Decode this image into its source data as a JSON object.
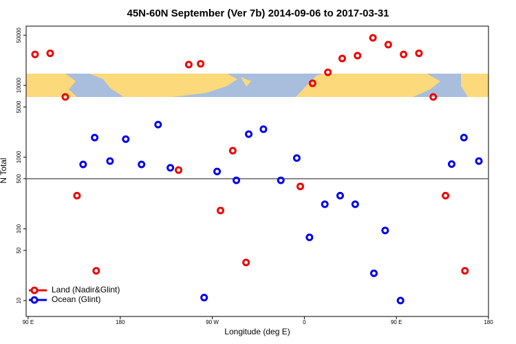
{
  "chart_data": {
    "type": "scatter",
    "title": "45N-60N September (Ver 7b)   2014-09-06 to 2017-03-31",
    "x_label": "Longitude (deg E)",
    "y_label": "N Total",
    "log_y": true,
    "hline": 500,
    "xlim": [
      88,
      540
    ],
    "ylim": [
      6,
      67000
    ],
    "xticks": [
      {
        "value": 90,
        "label": "90 E"
      },
      180,
      {
        "value": 270,
        "label": "90 W"
      },
      {
        "value": 360,
        "label": "0"
      },
      {
        "value": 450,
        "label": "90 E"
      },
      {
        "value": 540,
        "label": "180"
      }
    ],
    "yticks": [
      10,
      50,
      100,
      500,
      1000,
      5000,
      10000,
      50000
    ],
    "legend": "bottom-left",
    "series": [
      {
        "name": "Land (Nadir&Glint)",
        "color": "#ee0000",
        "x": [
          96.7,
          111.5,
          126.3,
          137.7,
          156.5,
          237,
          247,
          258.6,
          278,
          290,
          303,
          356,
          368,
          383,
          397,
          412,
          427,
          442,
          457,
          472,
          486,
          498,
          517
        ],
        "values": [
          27000,
          28000,
          6900,
          290,
          26,
          660,
          19500,
          20000,
          180,
          1230,
          34,
          390,
          10700,
          15200,
          23700,
          26000,
          46000,
          37000,
          27000,
          28000,
          6900,
          290,
          26
        ]
      },
      {
        "name": "Ocean (Glint)",
        "color": "#0000ee",
        "x": [
          143.7,
          155,
          170,
          185.4,
          200.8,
          217,
          229,
          262,
          274.7,
          293.5,
          305.6,
          320,
          337,
          352.6,
          365,
          380,
          395,
          409.7,
          428,
          439,
          454,
          504,
          516,
          530.6
        ],
        "values": [
          790,
          1870,
          880,
          1780,
          790,
          2840,
          710,
          11,
          630,
          475,
          2090,
          2450,
          475,
          970,
          76,
          220,
          290,
          220,
          24,
          95,
          10,
          800,
          1870,
          880
        ]
      }
    ]
  }
}
